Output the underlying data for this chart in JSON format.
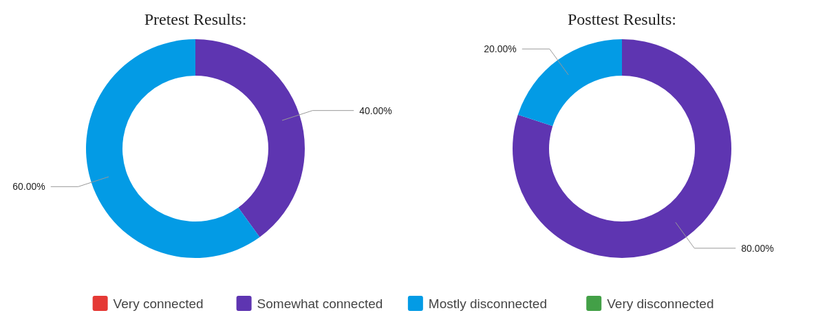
{
  "chart_data": [
    {
      "type": "donut",
      "title": "Pretest Results:",
      "categories": [
        "Very connected",
        "Somewhat connected",
        "Mostly disconnected",
        "Very disconnected"
      ],
      "values": [
        0,
        40,
        60,
        0
      ],
      "colors": [
        "#e53935",
        "#5e35b1",
        "#039be5",
        "#43a047"
      ],
      "value_labels": [
        null,
        "40.00%",
        "60.00%",
        null
      ],
      "legend": "bottom"
    },
    {
      "type": "donut",
      "title": "Posttest Results:",
      "categories": [
        null,
        null,
        null,
        null
      ],
      "values": [
        0,
        80,
        20,
        0
      ],
      "colors": [
        "#e53935",
        "#5e35b1",
        "#039be5",
        "#43a047"
      ],
      "value_labels": [
        null,
        "80.00%",
        "20.00%",
        null
      ]
    }
  ]
}
